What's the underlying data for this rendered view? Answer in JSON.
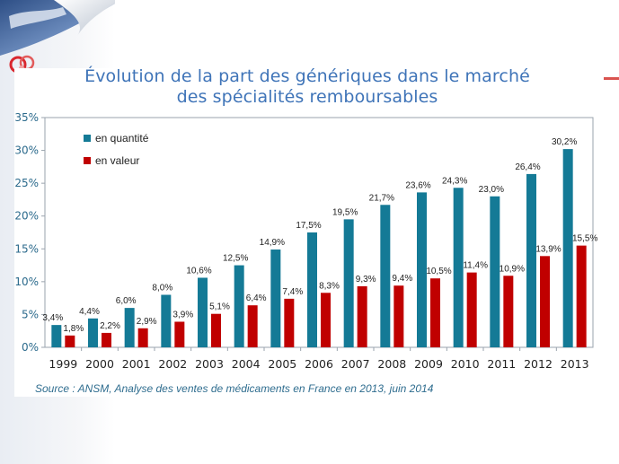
{
  "colors": {
    "quantity": "#147a96",
    "value": "#c00000",
    "title": "#3f74b8",
    "source": "#2f6d8f",
    "axis_ticks": "#2b6a8c"
  },
  "chart_data": {
    "type": "bar",
    "title_lines": [
      "Évolution de la part des génériques dans le marché",
      "des spécialités remboursables"
    ],
    "categories": [
      "1999",
      "2000",
      "2001",
      "2002",
      "2003",
      "2004",
      "2005",
      "2006",
      "2007",
      "2008",
      "2009",
      "2010",
      "2011",
      "2012",
      "2013"
    ],
    "series": [
      {
        "name": "en quantité",
        "values": [
          3.4,
          4.4,
          6.0,
          8.0,
          10.6,
          12.5,
          14.9,
          17.5,
          19.5,
          21.7,
          23.6,
          24.3,
          23.0,
          26.4,
          30.2
        ],
        "labels": [
          "3,4%",
          "4,4%",
          "6,0%",
          "8,0%",
          "10,6%",
          "12,5%",
          "14,9%",
          "17,5%",
          "19,5%",
          "21,7%",
          "23,6%",
          "24,3%",
          "23,0%",
          "26,4%",
          "30,2%"
        ]
      },
      {
        "name": "en valeur",
        "values": [
          1.8,
          2.2,
          2.9,
          3.9,
          5.1,
          6.4,
          7.4,
          8.3,
          9.3,
          9.4,
          10.5,
          11.4,
          10.9,
          13.9,
          15.5
        ],
        "labels": [
          "1,8%",
          "2,2%",
          "2,9%",
          "3,9%",
          "5,1%",
          "6,4%",
          "7,4%",
          "8,3%",
          "9,3%",
          "9,4%",
          "10,5%",
          "11,4%",
          "10,9%",
          "13,9%",
          "15,5%"
        ]
      }
    ],
    "y_ticks": [
      {
        "value": 0,
        "label": "0%"
      },
      {
        "value": 5,
        "label": "5%"
      },
      {
        "value": 10,
        "label": "10%"
      },
      {
        "value": 15,
        "label": "15%"
      },
      {
        "value": 20,
        "label": "20%"
      },
      {
        "value": 25,
        "label": "25%"
      },
      {
        "value": 30,
        "label": "30%"
      },
      {
        "value": 35,
        "label": "35%"
      }
    ],
    "ylim": [
      0,
      35
    ],
    "grid": false,
    "legend_position": "top-left",
    "source": "Source : ANSM, Analyse des ventes de médicaments en France en 2013, juin 2014"
  }
}
